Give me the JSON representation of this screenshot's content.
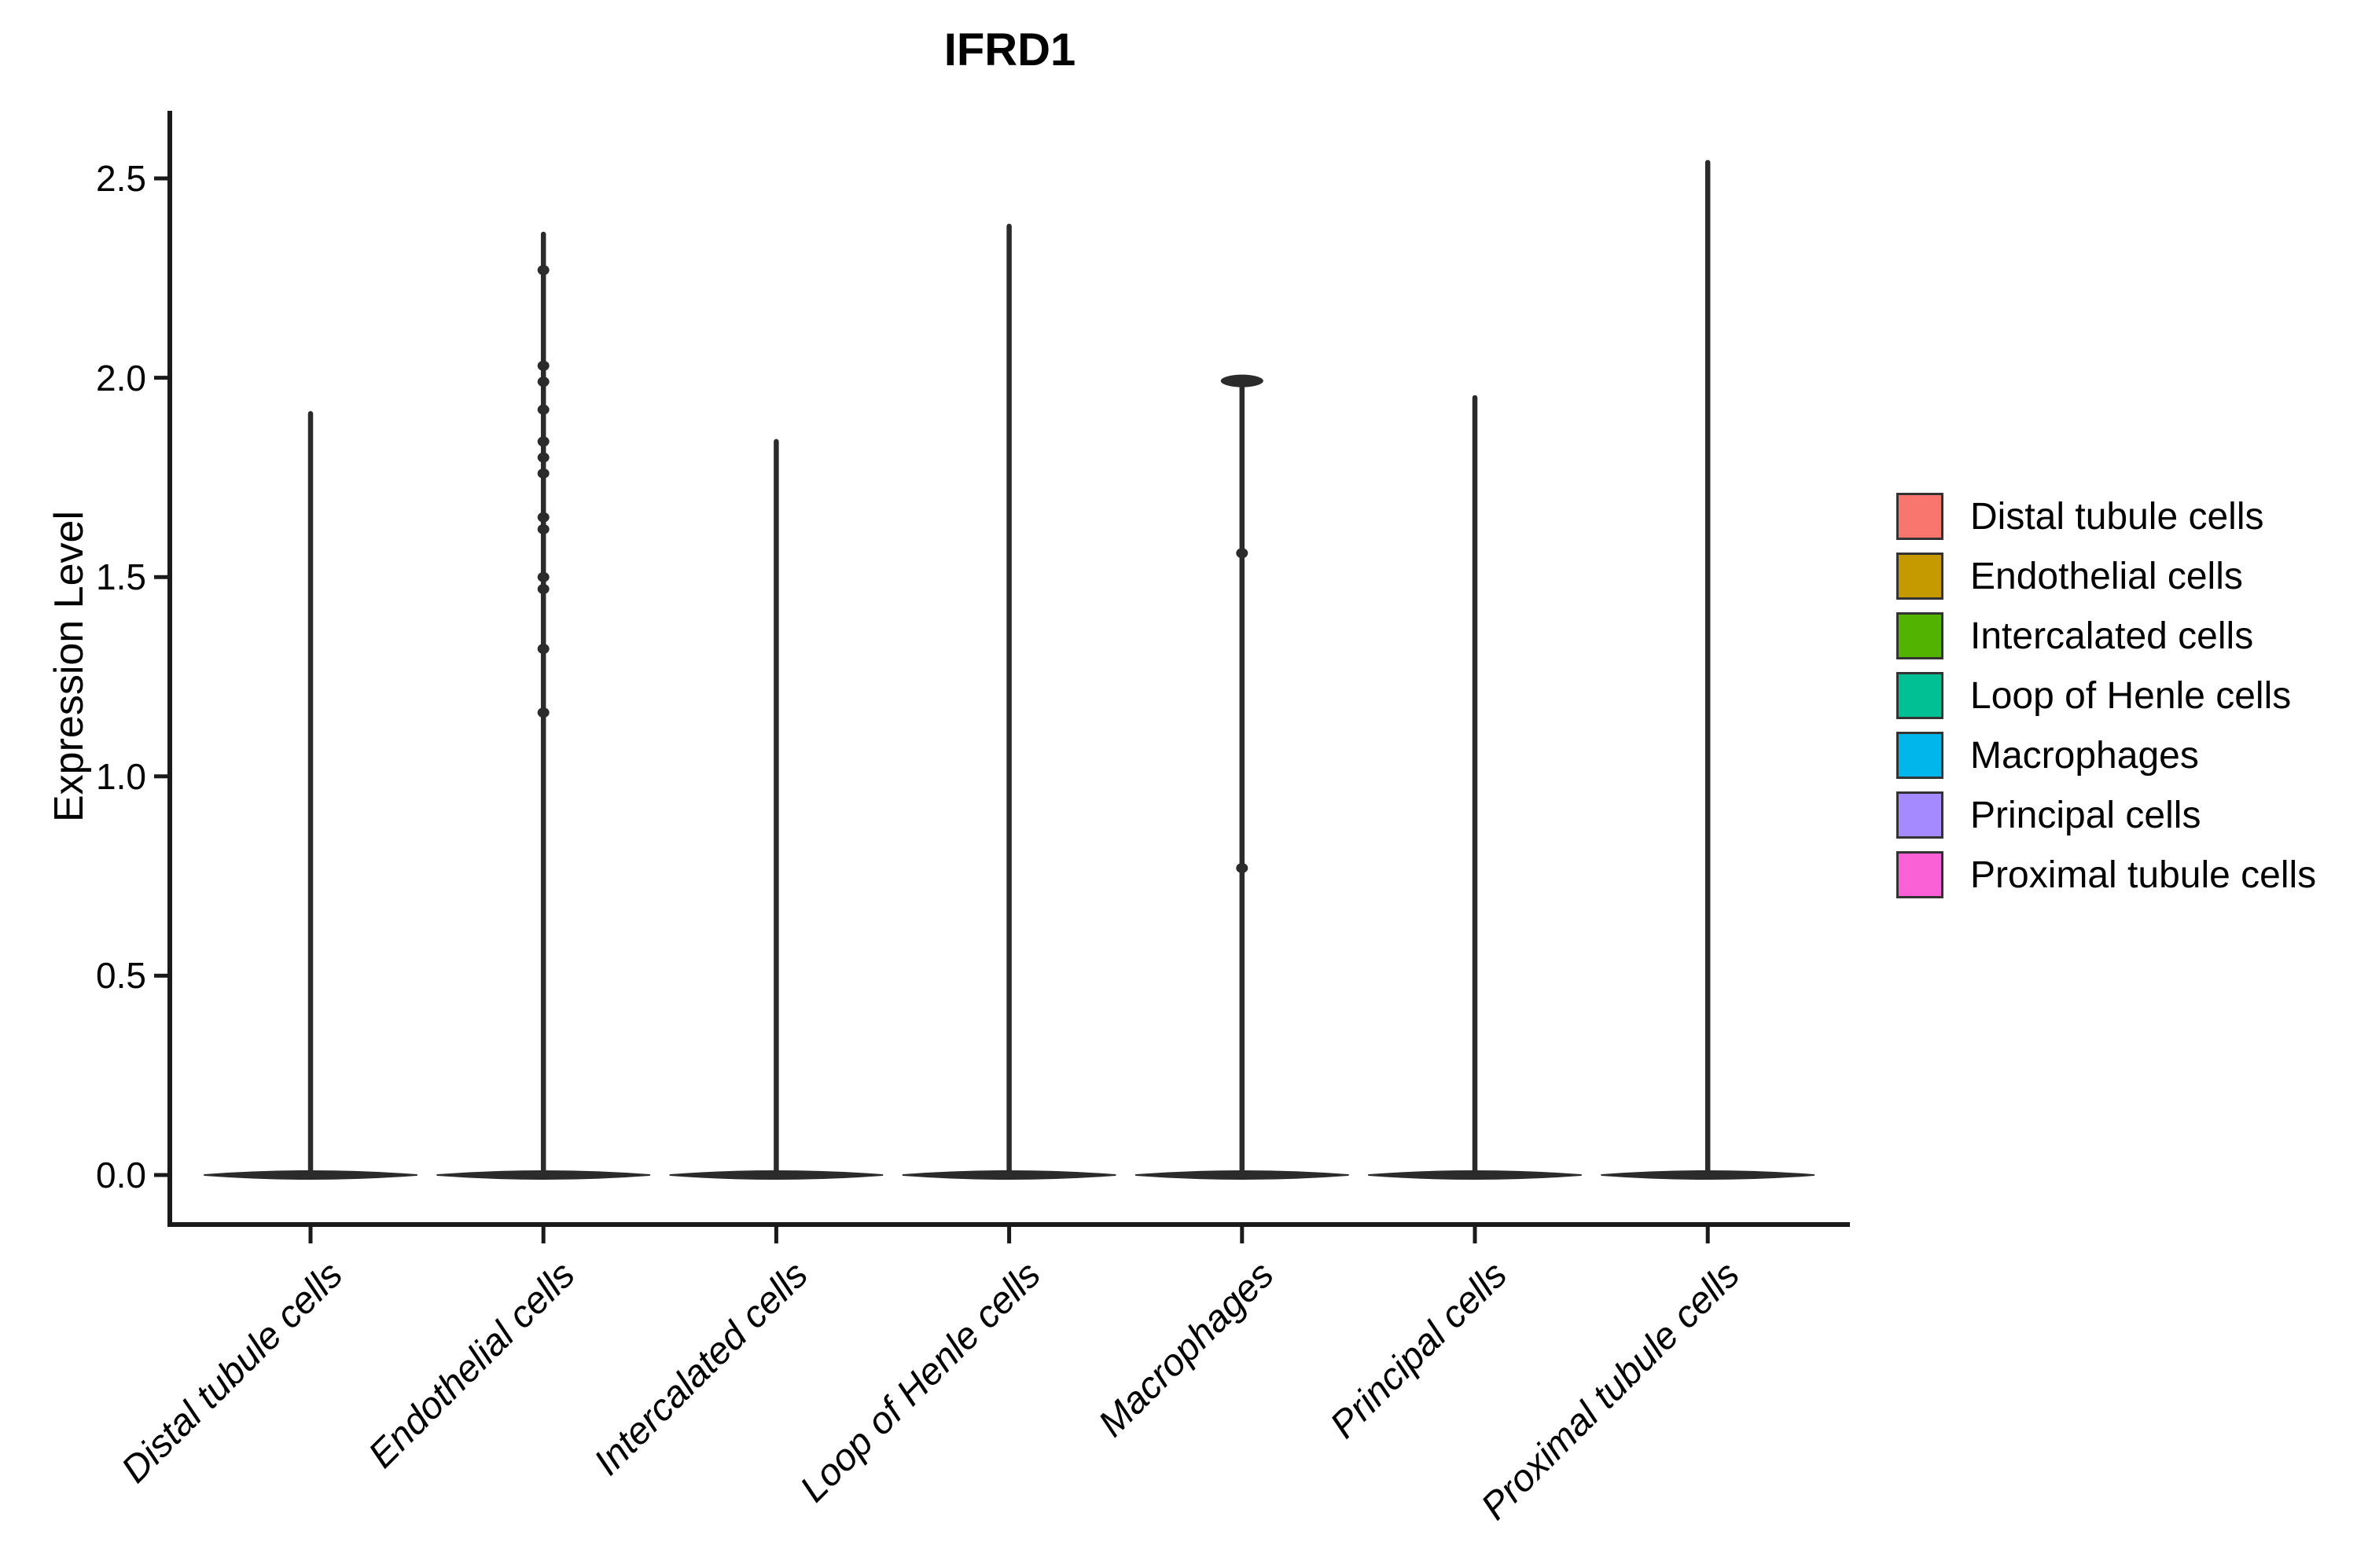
{
  "figure": {
    "title": "IFRD1",
    "ylabel": "Expression Level",
    "background": "#FFFFFF"
  },
  "chart_data": {
    "type": "violin",
    "title": "IFRD1",
    "xlabel": "",
    "ylabel": "Expression Level",
    "grid": false,
    "legend_position": "right",
    "ylim": [
      -0.06,
      2.68
    ],
    "y_ticks": [
      0.0,
      0.5,
      1.0,
      1.5,
      2.0,
      2.5
    ],
    "y_tick_labels": [
      "0.0",
      "0.5",
      "1.0",
      "1.5",
      "2.0",
      "2.5"
    ],
    "categories": [
      "Distal tubule cells",
      "Endothelial cells",
      "Intercalated cells",
      "Loop of Henle cells",
      "Macrophages",
      "Principal cells",
      "Proximal tubule cells"
    ],
    "violin_color": "#2B2B2B",
    "axis_color": "#1A1A1A",
    "baseline_value": 0.0,
    "series": [
      {
        "name": "Distal tubule cells",
        "color": "#F8766D",
        "max_expression": 1.91,
        "bulk_at_zero": true,
        "outlier_points": [],
        "top_cap": false
      },
      {
        "name": "Endothelial cells",
        "color": "#C49A00",
        "max_expression": 2.36,
        "bulk_at_zero": true,
        "outlier_points": [
          2.27,
          2.03,
          1.99,
          1.92,
          1.84,
          1.8,
          1.76,
          1.65,
          1.62,
          1.5,
          1.47,
          1.32,
          1.16
        ],
        "top_cap": false
      },
      {
        "name": "Intercalated cells",
        "color": "#53B400",
        "max_expression": 1.84,
        "bulk_at_zero": true,
        "outlier_points": [],
        "top_cap": false
      },
      {
        "name": "Loop of Henle cells",
        "color": "#00C094",
        "max_expression": 2.38,
        "bulk_at_zero": true,
        "outlier_points": [],
        "top_cap": false
      },
      {
        "name": "Macrophages",
        "color": "#00B6EB",
        "max_expression": 2.0,
        "bulk_at_zero": true,
        "outlier_points": [
          1.56,
          0.77
        ],
        "top_cap": true
      },
      {
        "name": "Principal cells",
        "color": "#A58AFF",
        "max_expression": 1.95,
        "bulk_at_zero": true,
        "outlier_points": [],
        "top_cap": false
      },
      {
        "name": "Proximal tubule cells",
        "color": "#FB61D7",
        "max_expression": 2.54,
        "bulk_at_zero": true,
        "outlier_points": [],
        "top_cap": false
      }
    ],
    "legend": {
      "entries": [
        {
          "label": "Distal tubule cells",
          "color": "#F8766D"
        },
        {
          "label": "Endothelial cells",
          "color": "#C49A00"
        },
        {
          "label": "Intercalated cells",
          "color": "#53B400"
        },
        {
          "label": "Loop of Henle cells",
          "color": "#00C094"
        },
        {
          "label": "Macrophages",
          "color": "#00B6EB"
        },
        {
          "label": "Principal cells",
          "color": "#A58AFF"
        },
        {
          "label": "Proximal tubule cells",
          "color": "#FB61D7"
        }
      ]
    }
  }
}
